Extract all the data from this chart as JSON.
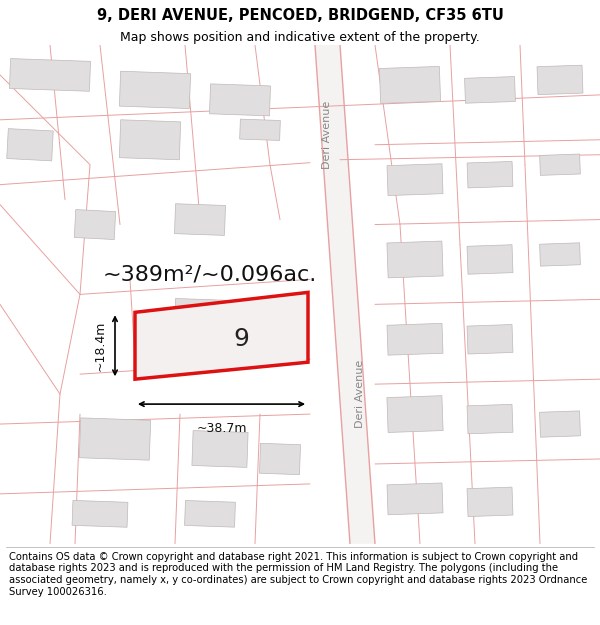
{
  "title_line1": "9, DERI AVENUE, PENCOED, BRIDGEND, CF35 6TU",
  "title_line2": "Map shows position and indicative extent of the property.",
  "footer_text": "Contains OS data © Crown copyright and database right 2021. This information is subject to Crown copyright and database rights 2023 and is reproduced with the permission of HM Land Registry. The polygons (including the associated geometry, namely x, y co-ordinates) are subject to Crown copyright and database rights 2023 Ordnance Survey 100026316.",
  "area_m2": "~389m²/~0.096ac.",
  "measurement_width": "~38.7m",
  "measurement_height": "~18.4m",
  "house_number": "9",
  "map_bg": "#f7f5f5",
  "plot_line_color": "#e8a0a0",
  "highlight_color": "#dd1111",
  "building_fill": "#e0dede",
  "building_edge": "#c8c0c0",
  "road_strip_fill": "#f0eded",
  "road_strip_edge": "#e0b0b0",
  "road_label_color": "#888888",
  "road_label": "Deri Avenue",
  "title_fontsize": 10.5,
  "subtitle_fontsize": 9,
  "footer_fontsize": 7.2,
  "area_fontsize": 16,
  "measure_fontsize": 9
}
